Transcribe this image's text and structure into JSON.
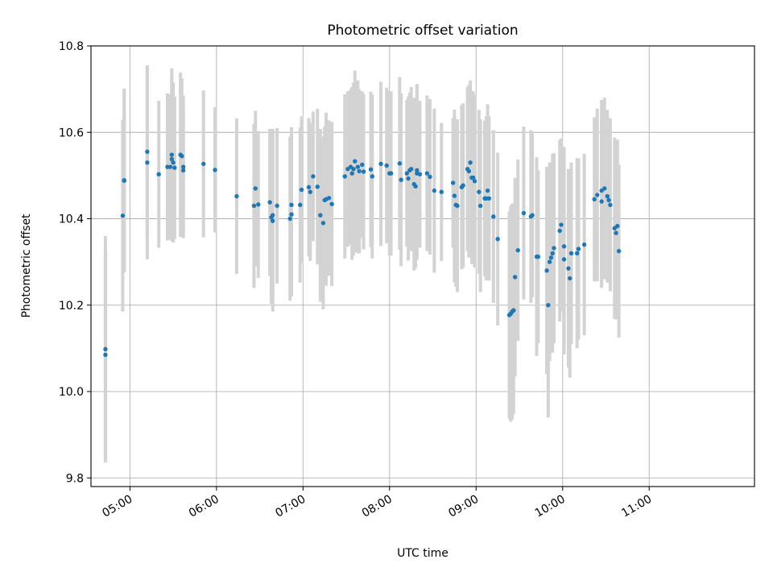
{
  "chart_data": {
    "type": "scatter",
    "title": "Photometric offset variation",
    "xlabel": "UTC time",
    "ylabel": "Photometric offset",
    "x_unit": "time",
    "xlim": [
      "04:33",
      "12:13"
    ],
    "ylim": [
      9.78,
      10.8
    ],
    "x_ticks": [
      "05:00",
      "06:00",
      "07:00",
      "08:00",
      "09:00",
      "10:00",
      "11:00"
    ],
    "y_ticks": [
      9.8,
      10.0,
      10.2,
      10.4,
      10.6,
      10.8
    ],
    "y_tick_labels": [
      "9.8",
      "10.0",
      "10.2",
      "10.4",
      "10.6",
      "10.8"
    ],
    "grid": true,
    "colors": {
      "point": "#1f77b4",
      "errorbar": "#d3d3d3",
      "grid": "#b0b0b0"
    },
    "points": [
      {
        "x": "04:43",
        "y": 10.085,
        "err": 0.245
      },
      {
        "x": "04:43",
        "y": 10.098,
        "err": 0.262
      },
      {
        "x": "04:55",
        "y": 10.407,
        "err": 0.222
      },
      {
        "x": "04:56",
        "y": 10.488,
        "err": 0.212
      },
      {
        "x": "04:56",
        "y": 10.489,
        "err": 0.212
      },
      {
        "x": "05:12",
        "y": 10.555,
        "err": 0.2
      },
      {
        "x": "05:12",
        "y": 10.53,
        "err": 0.224
      },
      {
        "x": "05:20",
        "y": 10.503,
        "err": 0.17
      },
      {
        "x": "05:26",
        "y": 10.52,
        "err": 0.17
      },
      {
        "x": "05:28",
        "y": 10.52,
        "err": 0.168
      },
      {
        "x": "05:29",
        "y": 10.548,
        "err": 0.2
      },
      {
        "x": "05:29",
        "y": 10.538,
        "err": 0.19
      },
      {
        "x": "05:30",
        "y": 10.53,
        "err": 0.185
      },
      {
        "x": "05:31",
        "y": 10.518,
        "err": 0.165
      },
      {
        "x": "05:35",
        "y": 10.548,
        "err": 0.19
      },
      {
        "x": "05:36",
        "y": 10.545,
        "err": 0.18
      },
      {
        "x": "05:37",
        "y": 10.52,
        "err": 0.165
      },
      {
        "x": "05:37",
        "y": 10.512,
        "err": 0.142
      },
      {
        "x": "05:51",
        "y": 10.527,
        "err": 0.17
      },
      {
        "x": "05:59",
        "y": 10.513,
        "err": 0.145
      },
      {
        "x": "06:14",
        "y": 10.452,
        "err": 0.18
      },
      {
        "x": "06:26",
        "y": 10.43,
        "err": 0.19
      },
      {
        "x": "06:27",
        "y": 10.47,
        "err": 0.18
      },
      {
        "x": "06:29",
        "y": 10.433,
        "err": 0.17
      },
      {
        "x": "06:37",
        "y": 10.438,
        "err": 0.17
      },
      {
        "x": "06:38",
        "y": 10.403,
        "err": 0.2
      },
      {
        "x": "06:39",
        "y": 10.395,
        "err": 0.21
      },
      {
        "x": "06:39",
        "y": 10.408,
        "err": 0.2
      },
      {
        "x": "06:42",
        "y": 10.43,
        "err": 0.18
      },
      {
        "x": "06:51",
        "y": 10.4,
        "err": 0.19
      },
      {
        "x": "06:52",
        "y": 10.41,
        "err": 0.19
      },
      {
        "x": "06:52",
        "y": 10.432,
        "err": 0.18
      },
      {
        "x": "06:58",
        "y": 10.432,
        "err": 0.18
      },
      {
        "x": "06:59",
        "y": 10.467,
        "err": 0.17
      },
      {
        "x": "07:04",
        "y": 10.473,
        "err": 0.16
      },
      {
        "x": "07:05",
        "y": 10.462,
        "err": 0.16
      },
      {
        "x": "07:07",
        "y": 10.498,
        "err": 0.15
      },
      {
        "x": "07:10",
        "y": 10.474,
        "err": 0.18
      },
      {
        "x": "07:12",
        "y": 10.408,
        "err": 0.2
      },
      {
        "x": "07:14",
        "y": 10.39,
        "err": 0.2
      },
      {
        "x": "07:15",
        "y": 10.443,
        "err": 0.17
      },
      {
        "x": "07:16",
        "y": 10.445,
        "err": 0.2
      },
      {
        "x": "07:18",
        "y": 10.448,
        "err": 0.18
      },
      {
        "x": "07:20",
        "y": 10.434,
        "err": 0.19
      },
      {
        "x": "07:29",
        "y": 10.498,
        "err": 0.19
      },
      {
        "x": "07:31",
        "y": 10.515,
        "err": 0.18
      },
      {
        "x": "07:33",
        "y": 10.52,
        "err": 0.18
      },
      {
        "x": "07:34",
        "y": 10.505,
        "err": 0.2
      },
      {
        "x": "07:35",
        "y": 10.515,
        "err": 0.2
      },
      {
        "x": "07:36",
        "y": 10.533,
        "err": 0.21
      },
      {
        "x": "07:38",
        "y": 10.52,
        "err": 0.2
      },
      {
        "x": "07:39",
        "y": 10.51,
        "err": 0.19
      },
      {
        "x": "07:41",
        "y": 10.525,
        "err": 0.17
      },
      {
        "x": "07:42",
        "y": 10.509,
        "err": 0.18
      },
      {
        "x": "07:47",
        "y": 10.514,
        "err": 0.18
      },
      {
        "x": "07:48",
        "y": 10.498,
        "err": 0.19
      },
      {
        "x": "07:54",
        "y": 10.527,
        "err": 0.19
      },
      {
        "x": "07:58",
        "y": 10.523,
        "err": 0.18
      },
      {
        "x": "08:00",
        "y": 10.505,
        "err": 0.19
      },
      {
        "x": "08:01",
        "y": 10.505,
        "err": 0.19
      },
      {
        "x": "08:07",
        "y": 10.528,
        "err": 0.2
      },
      {
        "x": "08:08",
        "y": 10.49,
        "err": 0.2
      },
      {
        "x": "08:12",
        "y": 10.505,
        "err": 0.17
      },
      {
        "x": "08:13",
        "y": 10.493,
        "err": 0.19
      },
      {
        "x": "08:14",
        "y": 10.512,
        "err": 0.18
      },
      {
        "x": "08:15",
        "y": 10.515,
        "err": 0.19
      },
      {
        "x": "08:17",
        "y": 10.48,
        "err": 0.2
      },
      {
        "x": "08:18",
        "y": 10.475,
        "err": 0.19
      },
      {
        "x": "08:19",
        "y": 10.505,
        "err": 0.2
      },
      {
        "x": "08:19",
        "y": 10.512,
        "err": 0.2
      },
      {
        "x": "08:21",
        "y": 10.503,
        "err": 0.17
      },
      {
        "x": "08:26",
        "y": 10.505,
        "err": 0.18
      },
      {
        "x": "08:28",
        "y": 10.497,
        "err": 0.18
      },
      {
        "x": "08:31",
        "y": 10.465,
        "err": 0.19
      },
      {
        "x": "08:36",
        "y": 10.462,
        "err": 0.16
      },
      {
        "x": "08:44",
        "y": 10.483,
        "err": 0.15
      },
      {
        "x": "08:45",
        "y": 10.453,
        "err": 0.2
      },
      {
        "x": "08:46",
        "y": 10.432,
        "err": 0.19
      },
      {
        "x": "08:47",
        "y": 10.43,
        "err": 0.2
      },
      {
        "x": "08:50",
        "y": 10.473,
        "err": 0.19
      },
      {
        "x": "08:51",
        "y": 10.477,
        "err": 0.19
      },
      {
        "x": "08:54",
        "y": 10.515,
        "err": 0.19
      },
      {
        "x": "08:55",
        "y": 10.51,
        "err": 0.2
      },
      {
        "x": "08:56",
        "y": 10.53,
        "err": 0.19
      },
      {
        "x": "08:57",
        "y": 10.495,
        "err": 0.2
      },
      {
        "x": "08:58",
        "y": 10.495,
        "err": 0.2
      },
      {
        "x": "08:59",
        "y": 10.487,
        "err": 0.2
      },
      {
        "x": "09:02",
        "y": 10.462,
        "err": 0.19
      },
      {
        "x": "09:03",
        "y": 10.43,
        "err": 0.2
      },
      {
        "x": "09:06",
        "y": 10.447,
        "err": 0.18
      },
      {
        "x": "09:07",
        "y": 10.447,
        "err": 0.19
      },
      {
        "x": "09:08",
        "y": 10.465,
        "err": 0.2
      },
      {
        "x": "09:09",
        "y": 10.447,
        "err": 0.19
      },
      {
        "x": "09:12",
        "y": 10.405,
        "err": 0.2
      },
      {
        "x": "09:15",
        "y": 10.353,
        "err": 0.2
      },
      {
        "x": "09:23",
        "y": 10.177,
        "err": 0.24
      },
      {
        "x": "09:24",
        "y": 10.18,
        "err": 0.25
      },
      {
        "x": "09:25",
        "y": 10.185,
        "err": 0.25
      },
      {
        "x": "09:26",
        "y": 10.188,
        "err": 0.24
      },
      {
        "x": "09:27",
        "y": 10.265,
        "err": 0.23
      },
      {
        "x": "09:29",
        "y": 10.327,
        "err": 0.21
      },
      {
        "x": "09:33",
        "y": 10.413,
        "err": 0.2
      },
      {
        "x": "09:38",
        "y": 10.405,
        "err": 0.2
      },
      {
        "x": "09:39",
        "y": 10.408,
        "err": 0.19
      },
      {
        "x": "09:42",
        "y": 10.312,
        "err": 0.23
      },
      {
        "x": "09:43",
        "y": 10.312,
        "err": 0.2
      },
      {
        "x": "09:49",
        "y": 10.28,
        "err": 0.24
      },
      {
        "x": "09:50",
        "y": 10.2,
        "err": 0.26
      },
      {
        "x": "09:51",
        "y": 10.3,
        "err": 0.23
      },
      {
        "x": "09:52",
        "y": 10.31,
        "err": 0.22
      },
      {
        "x": "09:53",
        "y": 10.32,
        "err": 0.23
      },
      {
        "x": "09:54",
        "y": 10.332,
        "err": 0.22
      },
      {
        "x": "09:58",
        "y": 10.372,
        "err": 0.21
      },
      {
        "x": "09:59",
        "y": 10.386,
        "err": 0.2
      },
      {
        "x": "10:01",
        "y": 10.336,
        "err": 0.23
      },
      {
        "x": "10:01",
        "y": 10.306,
        "err": 0.22
      },
      {
        "x": "10:04",
        "y": 10.285,
        "err": 0.23
      },
      {
        "x": "10:05",
        "y": 10.262,
        "err": 0.23
      },
      {
        "x": "10:06",
        "y": 10.32,
        "err": 0.21
      },
      {
        "x": "10:10",
        "y": 10.32,
        "err": 0.22
      },
      {
        "x": "10:11",
        "y": 10.33,
        "err": 0.21
      },
      {
        "x": "10:15",
        "y": 10.34,
        "err": 0.21
      },
      {
        "x": "10:22",
        "y": 10.445,
        "err": 0.19
      },
      {
        "x": "10:24",
        "y": 10.455,
        "err": 0.2
      },
      {
        "x": "10:27",
        "y": 10.465,
        "err": 0.21
      },
      {
        "x": "10:27",
        "y": 10.44,
        "err": 0.2
      },
      {
        "x": "10:29",
        "y": 10.47,
        "err": 0.21
      },
      {
        "x": "10:31",
        "y": 10.452,
        "err": 0.2
      },
      {
        "x": "10:32",
        "y": 10.443,
        "err": 0.19
      },
      {
        "x": "10:33",
        "y": 10.432,
        "err": 0.2
      },
      {
        "x": "10:36",
        "y": 10.378,
        "err": 0.21
      },
      {
        "x": "10:37",
        "y": 10.367,
        "err": 0.2
      },
      {
        "x": "10:38",
        "y": 10.383,
        "err": 0.2
      },
      {
        "x": "10:39",
        "y": 10.325,
        "err": 0.2
      }
    ]
  }
}
